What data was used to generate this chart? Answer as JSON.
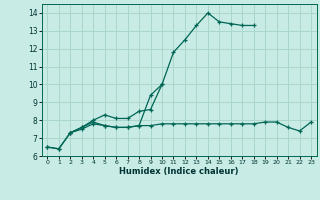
{
  "xlabel": "Humidex (Indice chaleur)",
  "bg_color": "#c8ebe5",
  "grid_color": "#aad6cc",
  "line_color": "#006655",
  "xlim": [
    -0.5,
    23.5
  ],
  "ylim": [
    6.0,
    14.5
  ],
  "yticks": [
    6,
    7,
    8,
    9,
    10,
    11,
    12,
    13,
    14
  ],
  "xticks": [
    0,
    1,
    2,
    3,
    4,
    5,
    6,
    7,
    8,
    9,
    10,
    11,
    12,
    13,
    14,
    15,
    16,
    17,
    18,
    19,
    20,
    21,
    22,
    23
  ],
  "series": [
    {
      "x": [
        0,
        1,
        2,
        3,
        4,
        5,
        6,
        7,
        8,
        9,
        10,
        11,
        12,
        13,
        14,
        15,
        16,
        17,
        18
      ],
      "y": [
        6.5,
        6.4,
        7.3,
        7.6,
        8.0,
        8.3,
        8.1,
        8.1,
        8.5,
        8.6,
        10.0,
        11.8,
        12.5,
        13.3,
        14.0,
        13.5,
        13.4,
        13.3,
        13.3
      ]
    },
    {
      "x": [
        0,
        1,
        2,
        3,
        4,
        5,
        6,
        7,
        8,
        9,
        10
      ],
      "y": [
        6.5,
        6.4,
        7.3,
        7.6,
        7.9,
        7.7,
        7.6,
        7.6,
        7.7,
        9.4,
        10.0
      ]
    },
    {
      "x": [
        2,
        3,
        4,
        5,
        6,
        7,
        8,
        9,
        10,
        11,
        12,
        13,
        14,
        15,
        16,
        17,
        18,
        19,
        20,
        21,
        22,
        23
      ],
      "y": [
        7.3,
        7.5,
        7.8,
        7.7,
        7.6,
        7.6,
        7.7,
        7.7,
        7.8,
        7.8,
        7.8,
        7.8,
        7.8,
        7.8,
        7.8,
        7.8,
        7.8,
        7.9,
        7.9,
        7.6,
        7.4,
        7.9
      ]
    }
  ]
}
